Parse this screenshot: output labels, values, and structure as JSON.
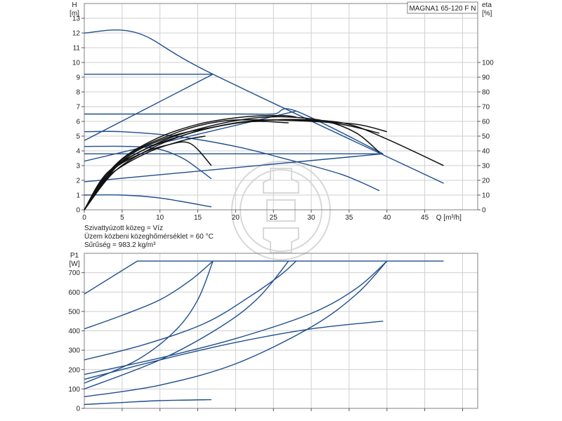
{
  "model": "MAGNA1 65-120 F N",
  "notes": [
    "Szivattyúzott közeg = Víz",
    "Üzem közbeni közeghőmérséklet = 60 °C",
    "Sűrűség = 983.2 kg/m³"
  ],
  "chart_data": [
    {
      "type": "line",
      "id": "head",
      "ylabel_top": "H",
      "ylabel_unit": "[m]",
      "y2label_top": "eta",
      "y2label_unit": "[%]",
      "xlabel": "Q [m³/h]",
      "xlim": [
        0,
        52
      ],
      "ylim": [
        0,
        14
      ],
      "y2lim": [
        0,
        140
      ],
      "xticks": [
        0,
        5,
        10,
        15,
        20,
        25,
        30,
        35,
        40,
        45
      ],
      "yticks": [
        0,
        1,
        2,
        3,
        4,
        5,
        6,
        7,
        8,
        9,
        10,
        11,
        12,
        13
      ],
      "y2ticks": [
        0,
        10,
        20,
        30,
        40,
        50,
        60,
        70,
        80,
        90,
        100
      ],
      "grid": true,
      "series": [
        {
          "kind": "pump",
          "points": [
            [
              0,
              12
            ],
            [
              7,
              12
            ],
            [
              17,
              9.2
            ],
            [
              47.5,
              1.8
            ]
          ]
        },
        {
          "kind": "pump",
          "points": [
            [
              0,
              4.7
            ],
            [
              17,
              9.2
            ]
          ]
        },
        {
          "kind": "pump",
          "points": [
            [
              0,
              9.2
            ],
            [
              17,
              9.2
            ]
          ]
        },
        {
          "kind": "pump",
          "points": [
            [
              0,
              6.5
            ],
            [
              20,
              6.5
            ],
            [
              25,
              6.5
            ],
            [
              28,
              6.7
            ],
            [
              39.5,
              3.8
            ]
          ]
        },
        {
          "kind": "pump",
          "points": [
            [
              0,
              3.3
            ],
            [
              28,
              6.7
            ]
          ]
        },
        {
          "kind": "pump",
          "points": [
            [
              0,
              5.3
            ],
            [
              5,
              5.3
            ],
            [
              12,
              5
            ],
            [
              20,
              4.3
            ],
            [
              27,
              3.4
            ],
            [
              34,
              2.4
            ],
            [
              39,
              1.3
            ]
          ]
        },
        {
          "kind": "pump",
          "points": [
            [
              0,
              3.8
            ],
            [
              39.5,
              3.8
            ]
          ]
        },
        {
          "kind": "pump",
          "points": [
            [
              0,
              1.9
            ],
            [
              39.5,
              3.8
            ]
          ]
        },
        {
          "kind": "pump",
          "points": [
            [
              0,
              4.3
            ],
            [
              6,
              4.3
            ],
            [
              10,
              4.1
            ],
            [
              13,
              3.5
            ],
            [
              15,
              2.8
            ],
            [
              16.8,
              2.1
            ]
          ]
        },
        {
          "kind": "pump",
          "points": [
            [
              0,
              1.0
            ],
            [
              5,
              1.0
            ],
            [
              10,
              0.8
            ],
            [
              16.8,
              0.2
            ]
          ]
        },
        {
          "kind": "eta",
          "points": [
            [
              0,
              0
            ],
            [
              3,
              25
            ],
            [
              8,
              41
            ],
            [
              14,
              52
            ],
            [
              20,
              59
            ],
            [
              25,
              61
            ],
            [
              30,
              61
            ],
            [
              35,
              58
            ],
            [
              40,
              48
            ],
            [
              47.5,
              30
            ]
          ]
        },
        {
          "kind": "eta",
          "points": [
            [
              0,
              0
            ],
            [
              4,
              28
            ],
            [
              10,
              46
            ],
            [
              16,
              56
            ],
            [
              22,
              62
            ],
            [
              27,
              63
            ],
            [
              32,
              60
            ],
            [
              36,
              52
            ],
            [
              39,
              39
            ]
          ]
        },
        {
          "kind": "eta",
          "points": [
            [
              0,
              0
            ],
            [
              4,
              26
            ],
            [
              9,
              42
            ],
            [
              14,
              52
            ],
            [
              19,
              58
            ],
            [
              23,
              60
            ],
            [
              27,
              59
            ]
          ]
        },
        {
          "kind": "eta",
          "points": [
            [
              0,
              0
            ],
            [
              3,
              24
            ],
            [
              7,
              37
            ],
            [
              11,
              44
            ],
            [
              14,
              45
            ],
            [
              16.8,
              30
            ]
          ]
        },
        {
          "kind": "eta",
          "points": [
            [
              0,
              0
            ],
            [
              4,
              30
            ],
            [
              9,
              47
            ],
            [
              15,
              58
            ],
            [
              21,
              63
            ],
            [
              26,
              64
            ],
            [
              28,
              63
            ]
          ]
        },
        {
          "kind": "eta",
          "points": [
            [
              0,
              0
            ],
            [
              5,
              33
            ],
            [
              11,
              49
            ],
            [
              17,
              56
            ],
            [
              22,
              60
            ],
            [
              28,
              61
            ],
            [
              34,
              58
            ],
            [
              39,
              52
            ]
          ]
        },
        {
          "kind": "eta",
          "points": [
            [
              0,
              0
            ],
            [
              5,
              34
            ],
            [
              12,
              52
            ],
            [
              18,
              60
            ],
            [
              24,
              61
            ],
            [
              30,
              60
            ],
            [
              36,
              58
            ],
            [
              40,
              53
            ]
          ]
        },
        {
          "kind": "eta",
          "points": [
            [
              0,
              0
            ],
            [
              3,
              22
            ],
            [
              8,
              38
            ],
            [
              13,
              47
            ],
            [
              16,
              50
            ]
          ]
        }
      ]
    },
    {
      "type": "line",
      "id": "power",
      "ylabel_top": "P1",
      "ylabel_unit": "[W]",
      "xlim": [
        0,
        52
      ],
      "ylim": [
        0,
        800
      ],
      "yticks": [
        0,
        100,
        200,
        300,
        400,
        500,
        600,
        700
      ],
      "grid": true,
      "series": [
        {
          "points": [
            [
              0,
              590
            ],
            [
              7,
              760
            ],
            [
              47.5,
              760
            ]
          ]
        },
        {
          "points": [
            [
              0,
              410
            ],
            [
              5,
              480
            ],
            [
              10,
              560
            ],
            [
              14,
              660
            ],
            [
              17,
              760
            ]
          ]
        },
        {
          "points": [
            [
              0,
              130
            ],
            [
              7,
              250
            ],
            [
              12,
              400
            ],
            [
              15,
              560
            ],
            [
              17,
              760
            ]
          ]
        },
        {
          "points": [
            [
              0,
              250
            ],
            [
              8,
              330
            ],
            [
              16,
              440
            ],
            [
              22,
              580
            ],
            [
              26,
              690
            ],
            [
              28,
              760
            ]
          ]
        },
        {
          "points": [
            [
              0,
              100
            ],
            [
              10,
              250
            ],
            [
              18,
              420
            ],
            [
              23,
              570
            ],
            [
              27,
              760
            ]
          ]
        },
        {
          "points": [
            [
              0,
              175
            ],
            [
              10,
              260
            ],
            [
              20,
              360
            ],
            [
              30,
              490
            ],
            [
              36,
              620
            ],
            [
              40,
              760
            ]
          ]
        },
        {
          "points": [
            [
              0,
              60
            ],
            [
              10,
              120
            ],
            [
              20,
              230
            ],
            [
              30,
              420
            ],
            [
              36,
              590
            ],
            [
              40,
              760
            ]
          ]
        },
        {
          "points": [
            [
              0,
              150
            ],
            [
              10,
              250
            ],
            [
              20,
              340
            ],
            [
              30,
              410
            ],
            [
              39.5,
              450
            ]
          ]
        },
        {
          "points": [
            [
              0,
              20
            ],
            [
              5,
              30
            ],
            [
              10,
              40
            ],
            [
              16.8,
              45
            ]
          ]
        }
      ]
    }
  ]
}
